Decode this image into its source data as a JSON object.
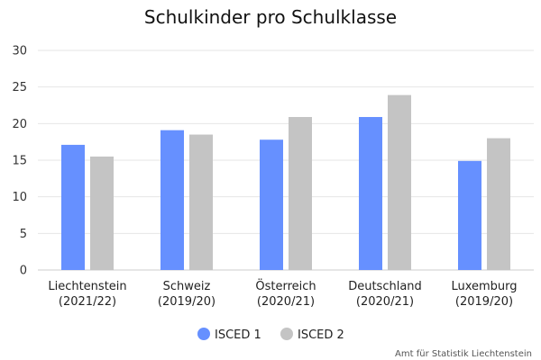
{
  "chart_data": {
    "type": "bar",
    "title": "Schulkinder pro Schulklasse",
    "categories": [
      [
        "Liechtenstein",
        "(2021/22)"
      ],
      [
        "Schweiz",
        "(2019/20)"
      ],
      [
        "Österreich",
        "(2020/21)"
      ],
      [
        "Deutschland",
        "(2020/21)"
      ],
      [
        "Luxemburg",
        "(2019/20)"
      ]
    ],
    "series": [
      {
        "name": "ISCED 1",
        "color": "#6690ff",
        "values": [
          17.1,
          19.1,
          17.8,
          20.9,
          14.9
        ]
      },
      {
        "name": "ISCED 2",
        "color": "#c4c4c4",
        "values": [
          15.5,
          18.5,
          20.9,
          23.9,
          18.0
        ]
      }
    ],
    "ylim": [
      0,
      30
    ],
    "yticks": [
      0,
      5,
      10,
      15,
      20,
      25,
      30
    ],
    "grid": true,
    "legend_position": "bottom"
  },
  "source": "Amt für Statistik Liechtenstein"
}
